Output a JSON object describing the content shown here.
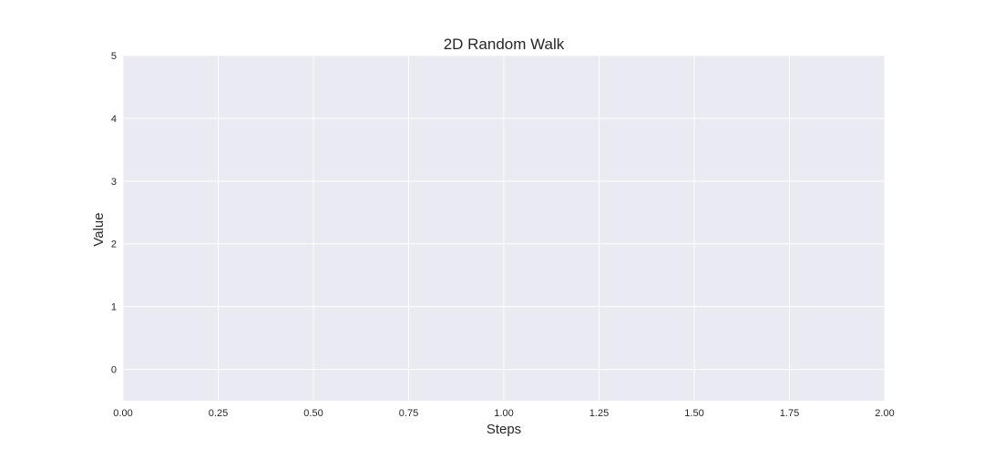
{
  "chart_data": {
    "type": "line",
    "title": "2D Random Walk",
    "xlabel": "Steps",
    "ylabel": "Value",
    "xlim": [
      0,
      2
    ],
    "ylim": [
      -0.5,
      5
    ],
    "x_ticks": [
      0,
      0.25,
      0.5,
      0.75,
      1,
      1.25,
      1.5,
      1.75,
      2
    ],
    "x_tick_labels": [
      "0.00",
      "0.25",
      "0.50",
      "0.75",
      "1.00",
      "1.25",
      "1.50",
      "1.75",
      "2.00"
    ],
    "y_ticks": [
      0,
      1,
      2,
      3,
      4,
      5
    ],
    "y_tick_labels": [
      "0",
      "1",
      "2",
      "3",
      "4",
      "5"
    ],
    "grid": true,
    "series": []
  },
  "colors": {
    "plot_background": "#eaeaf2",
    "grid": "#ffffff",
    "text": "#262626"
  }
}
